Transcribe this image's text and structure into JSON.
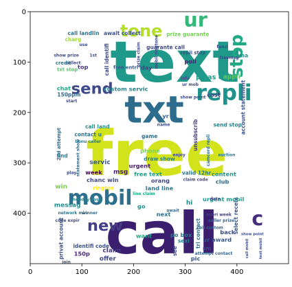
{
  "axes": {
    "x_range": [
      0,
      500
    ],
    "y_range": [
      0,
      500
    ],
    "y_inverted": true,
    "x_ticks": [
      0,
      100,
      200,
      300,
      400
    ],
    "y_ticks": [
      0,
      100,
      200,
      300,
      400
    ],
    "frame_color": "#000000",
    "background": "#ffffff"
  },
  "words": [
    {
      "text": "free",
      "x": 245,
      "y": 282,
      "size": 120,
      "rotate": 0,
      "color": "#d2e21b"
    },
    {
      "text": "call",
      "x": 255,
      "y": 440,
      "size": 112,
      "rotate": 0,
      "color": "#3b1e6e"
    },
    {
      "text": "text",
      "x": 280,
      "y": 100,
      "size": 110,
      "rotate": 0,
      "color": "#1f9a8a"
    },
    {
      "text": "txt",
      "x": 240,
      "y": 195,
      "size": 72,
      "rotate": 0,
      "color": "#2e6c8e"
    },
    {
      "text": "mobil",
      "x": 135,
      "y": 370,
      "size": 40,
      "rotate": 0,
      "color": "#2d708e"
    },
    {
      "text": "repli",
      "x": 375,
      "y": 162,
      "size": 42,
      "rotate": 0,
      "color": "#20928c"
    },
    {
      "text": "tone",
      "x": 215,
      "y": 38,
      "size": 32,
      "rotate": 0,
      "color": "#b5de2b"
    },
    {
      "text": "ur",
      "x": 320,
      "y": 16,
      "size": 38,
      "rotate": 0,
      "color": "#35b779"
    },
    {
      "text": "stop",
      "x": 400,
      "y": 88,
      "size": 34,
      "rotate": -90,
      "color": "#22a884"
    },
    {
      "text": "send",
      "x": 120,
      "y": 153,
      "size": 30,
      "rotate": 0,
      "color": "#3e4989"
    },
    {
      "text": "new",
      "x": 145,
      "y": 425,
      "size": 30,
      "rotate": 0,
      "color": "#433e85"
    },
    {
      "text": "c",
      "x": 440,
      "y": 410,
      "size": 38,
      "rotate": 0,
      "color": "#472d7b"
    },
    {
      "text": "pleas call",
      "x": 355,
      "y": 131,
      "size": 13,
      "rotate": 0,
      "color": "#1e9b8a"
    },
    {
      "text": "call landlin",
      "x": 103,
      "y": 43,
      "size": 10,
      "rotate": 0,
      "color": "#2c728e"
    },
    {
      "text": "await collect",
      "x": 178,
      "y": 43,
      "size": 10,
      "rotate": 0,
      "color": "#3b528b"
    },
    {
      "text": "prize guarante",
      "x": 305,
      "y": 45,
      "size": 10,
      "rotate": 0,
      "color": "#75d054"
    },
    {
      "text": "guarante call",
      "x": 262,
      "y": 71,
      "size": 10,
      "rotate": 0,
      "color": "#3e4989"
    },
    {
      "text": "charg",
      "x": 83,
      "y": 55,
      "size": 10,
      "rotate": 0,
      "color": "#a0da39"
    },
    {
      "text": "credit",
      "x": 64,
      "y": 102,
      "size": 9,
      "rotate": 0,
      "color": "#2a788e"
    },
    {
      "text": "txt stop",
      "x": 72,
      "y": 115,
      "size": 9,
      "rotate": 0,
      "color": "#52c569"
    },
    {
      "text": "chat",
      "x": 65,
      "y": 152,
      "size": 11,
      "rotate": 0,
      "color": "#22a884"
    },
    {
      "text": "150ppm",
      "x": 75,
      "y": 165,
      "size": 10,
      "rotate": 0,
      "color": "#31688e"
    },
    {
      "text": "2nd attempt",
      "x": 56,
      "y": 263,
      "size": 9,
      "rotate": -90,
      "color": "#31688e"
    },
    {
      "text": "call land",
      "x": 130,
      "y": 228,
      "size": 10,
      "rotate": 0,
      "color": "#21918c"
    },
    {
      "text": "contact u",
      "x": 112,
      "y": 244,
      "size": 10,
      "rotate": 0,
      "color": "#2c728e"
    },
    {
      "text": "find",
      "x": 62,
      "y": 286,
      "size": 10,
      "rotate": 0,
      "color": "#2a788e"
    },
    {
      "text": "win",
      "x": 60,
      "y": 348,
      "size": 12,
      "rotate": 0,
      "color": "#7ad151"
    },
    {
      "text": "messag",
      "x": 72,
      "y": 385,
      "size": 12,
      "rotate": 0,
      "color": "#228c8d"
    },
    {
      "text": "privat account",
      "x": 60,
      "y": 450,
      "size": 10,
      "rotate": -90,
      "color": "#3b528b"
    },
    {
      "text": "servic",
      "x": 135,
      "y": 300,
      "size": 12,
      "rotate": 0,
      "color": "#38588c"
    },
    {
      "text": "msg",
      "x": 175,
      "y": 319,
      "size": 12,
      "rotate": 0,
      "color": "#482173"
    },
    {
      "text": "week",
      "x": 123,
      "y": 319,
      "size": 11,
      "rotate": 0,
      "color": "#440154"
    },
    {
      "text": "chanc win",
      "x": 140,
      "y": 334,
      "size": 11,
      "rotate": 0,
      "color": "#3e4989"
    },
    {
      "text": "rington",
      "x": 142,
      "y": 350,
      "size": 10,
      "rotate": 0,
      "color": "#fde725"
    },
    {
      "text": "go",
      "x": 215,
      "y": 386,
      "size": 11,
      "rotate": 0,
      "color": "#21918c"
    },
    {
      "text": "phone",
      "x": 232,
      "y": 276,
      "size": 11,
      "rotate": 0,
      "color": "#7ad151"
    },
    {
      "text": "draw show",
      "x": 250,
      "y": 292,
      "size": 10,
      "rotate": 0,
      "color": "#26828e"
    },
    {
      "text": "urgent",
      "x": 212,
      "y": 306,
      "size": 11,
      "rotate": 0,
      "color": "#481a6c"
    },
    {
      "text": "free text",
      "x": 228,
      "y": 322,
      "size": 11,
      "rotate": 0,
      "color": "#1f9a8a"
    },
    {
      "text": "orang",
      "x": 252,
      "y": 335,
      "size": 11,
      "rotate": 0,
      "color": "#3e4989"
    },
    {
      "text": "land line",
      "x": 250,
      "y": 350,
      "size": 11,
      "rotate": 0,
      "color": "#2a788e"
    },
    {
      "text": "next",
      "x": 258,
      "y": 402,
      "size": 11,
      "rotate": 0,
      "color": "#2c728e"
    },
    {
      "text": "want",
      "x": 220,
      "y": 445,
      "size": 11,
      "rotate": 0,
      "color": "#22a884"
    },
    {
      "text": "identifi code",
      "x": 118,
      "y": 465,
      "size": 10,
      "rotate": 0,
      "color": "#3b528b"
    },
    {
      "text": "150p",
      "x": 100,
      "y": 480,
      "size": 11,
      "rotate": 0,
      "color": "#482878"
    },
    {
      "text": "claim",
      "x": 158,
      "y": 475,
      "size": 12,
      "rotate": 0,
      "color": "#453781"
    },
    {
      "text": "offer",
      "x": 150,
      "y": 491,
      "size": 12,
      "rotate": 0,
      "color": "#3f4788"
    },
    {
      "text": "po box",
      "x": 292,
      "y": 443,
      "size": 11,
      "rotate": 0,
      "color": "#2a788e"
    },
    {
      "text": "ur award",
      "x": 362,
      "y": 452,
      "size": 11,
      "rotate": 0,
      "color": "#38588c"
    },
    {
      "text": "sexi",
      "x": 297,
      "y": 455,
      "size": 10,
      "rotate": 0,
      "color": "#24868e"
    },
    {
      "text": "pic",
      "x": 320,
      "y": 490,
      "size": 11,
      "rotate": 0,
      "color": "#3b528b"
    },
    {
      "text": "back",
      "x": 382,
      "y": 437,
      "size": 11,
      "rotate": 0,
      "color": "#3e4989"
    },
    {
      "text": "urgent mobil",
      "x": 374,
      "y": 372,
      "size": 11,
      "rotate": 0,
      "color": "#1e9b8a"
    },
    {
      "text": "valid 12hr",
      "x": 322,
      "y": 320,
      "size": 10,
      "rotate": 0,
      "color": "#2a788e"
    },
    {
      "text": "content",
      "x": 375,
      "y": 322,
      "size": 11,
      "rotate": 0,
      "color": "#21918c"
    },
    {
      "text": "club",
      "x": 372,
      "y": 337,
      "size": 11,
      "rotate": 0,
      "color": "#31688e"
    },
    {
      "text": "select receiv",
      "x": 398,
      "y": 405,
      "size": 10,
      "rotate": -90,
      "color": "#38588c"
    },
    {
      "text": "tri contact",
      "x": 325,
      "y": 440,
      "size": 10,
      "rotate": -90,
      "color": "#2c728e"
    },
    {
      "text": "unsubscrib",
      "x": 320,
      "y": 245,
      "size": 10,
      "rotate": -90,
      "color": "#443a83"
    },
    {
      "text": "send stop",
      "x": 382,
      "y": 225,
      "size": 10,
      "rotate": 0,
      "color": "#25858e"
    },
    {
      "text": "account statement",
      "x": 412,
      "y": 190,
      "size": 10,
      "rotate": -90,
      "color": "#3b528b"
    },
    {
      "text": "appli",
      "x": 390,
      "y": 130,
      "size": 12,
      "rotate": 0,
      "color": "#5ec962"
    },
    {
      "text": "cost",
      "x": 355,
      "y": 165,
      "size": 11,
      "rotate": 0,
      "color": "#414487"
    },
    {
      "text": "poli",
      "x": 310,
      "y": 99,
      "size": 11,
      "rotate": 0,
      "color": "#481f70"
    },
    {
      "text": "repli stop",
      "x": 315,
      "y": 82,
      "size": 9,
      "rotate": 0,
      "color": "#3b528b"
    },
    {
      "text": "day",
      "x": 225,
      "y": 111,
      "size": 11,
      "rotate": 0,
      "color": "#3f4788"
    },
    {
      "text": "custom servic",
      "x": 185,
      "y": 153,
      "size": 11,
      "rotate": 0,
      "color": "#25838e"
    },
    {
      "text": "top",
      "x": 102,
      "y": 110,
      "size": 11,
      "rotate": 0,
      "color": "#453781"
    },
    {
      "text": "free entri",
      "x": 185,
      "y": 111,
      "size": 9,
      "rotate": 0,
      "color": "#38588c"
    },
    {
      "text": "yr",
      "x": 262,
      "y": 207,
      "size": 11,
      "rotate": 0,
      "color": "#355f8d"
    },
    {
      "text": "game",
      "x": 231,
      "y": 247,
      "size": 10,
      "rotate": 0,
      "color": "#2d708e"
    },
    {
      "text": "xma",
      "x": 410,
      "y": 87,
      "size": 10,
      "rotate": 0,
      "color": "#21918c"
    },
    {
      "text": "call identifi",
      "x": 148,
      "y": 95,
      "size": 10,
      "rotate": -90,
      "color": "#3e4989"
    },
    {
      "text": "call custom",
      "x": 348,
      "y": 429,
      "size": 8,
      "rotate": 0,
      "color": "#31688e"
    },
    {
      "text": "everi week",
      "x": 365,
      "y": 403,
      "size": 8,
      "rotate": 0,
      "color": "#433e85"
    },
    {
      "text": "caller prize",
      "x": 370,
      "y": 415,
      "size": 8,
      "rotate": 0,
      "color": "#33638d"
    },
    {
      "text": "attempt contact",
      "x": 355,
      "y": 480,
      "size": 8,
      "rotate": 0,
      "color": "#33638d"
    },
    {
      "text": "claim code",
      "x": 320,
      "y": 334,
      "size": 8,
      "rotate": 0,
      "color": "#414487"
    },
    {
      "text": "network min",
      "x": 82,
      "y": 400,
      "size": 8,
      "rotate": 0,
      "color": "#2a788e"
    },
    {
      "text": "winner",
      "x": 115,
      "y": 400,
      "size": 8,
      "rotate": 0,
      "color": "#31688e"
    },
    {
      "text": "holiday cash",
      "x": 110,
      "y": 373,
      "size": 8,
      "rotate": 0,
      "color": "#25838e"
    },
    {
      "text": "bonu caller",
      "x": 112,
      "y": 258,
      "size": 8,
      "rotate": 0,
      "color": "#2a788e"
    },
    {
      "text": "statement show",
      "x": 93,
      "y": 290,
      "size": 8,
      "rotate": -90,
      "color": "#31688e"
    },
    {
      "text": "camcord repli",
      "x": 345,
      "y": 275,
      "size": 8,
      "rotate": -90,
      "color": "#2c728e"
    },
    {
      "text": "auction",
      "x": 380,
      "y": 285,
      "size": 8,
      "rotate": 0,
      "color": "#2a788e"
    },
    {
      "text": "line claim",
      "x": 220,
      "y": 362,
      "size": 8,
      "rotate": 0,
      "color": "#22a884"
    },
    {
      "text": "await",
      "x": 276,
      "y": 395,
      "size": 8,
      "rotate": 0,
      "color": "#31688e"
    },
    {
      "text": "info",
      "x": 300,
      "y": 133,
      "size": 8,
      "rotate": 0,
      "color": "#3e4989"
    },
    {
      "text": "ur mob",
      "x": 310,
      "y": 145,
      "size": 8,
      "rotate": 0,
      "color": "#3e4989"
    },
    {
      "text": "show point",
      "x": 315,
      "y": 170,
      "size": 8,
      "rotate": 0,
      "color": "#3e4989"
    },
    {
      "text": "name",
      "x": 258,
      "y": 225,
      "size": 8,
      "rotate": 0,
      "color": "#3e4989"
    },
    {
      "text": "fanci",
      "x": 372,
      "y": 70,
      "size": 8,
      "rotate": 0,
      "color": "#3e4989"
    },
    {
      "text": "freemsg",
      "x": 385,
      "y": 92,
      "size": 8,
      "rotate": 0,
      "color": "#3e4989"
    },
    {
      "text": "1st",
      "x": 122,
      "y": 87,
      "size": 8,
      "rotate": 0,
      "color": "#3e4989"
    },
    {
      "text": "collect",
      "x": 83,
      "y": 102,
      "size": 8,
      "rotate": 0,
      "color": "#3e4989"
    },
    {
      "text": "show prize",
      "x": 70,
      "y": 87,
      "size": 8,
      "rotate": 0,
      "color": "#3e4989"
    },
    {
      "text": "use",
      "x": 103,
      "y": 66,
      "size": 8,
      "rotate": 0,
      "color": "#3e4989"
    },
    {
      "text": "start",
      "x": 80,
      "y": 178,
      "size": 8,
      "rotate": 0,
      "color": "#3e4989"
    },
    {
      "text": "enjoy",
      "x": 288,
      "y": 285,
      "size": 8,
      "rotate": 0,
      "color": "#3e4989"
    },
    {
      "text": "date",
      "x": 358,
      "y": 372,
      "size": 8,
      "rotate": 0,
      "color": "#3e4989"
    },
    {
      "text": "hi",
      "x": 308,
      "y": 380,
      "size": 12,
      "rotate": 0,
      "color": "#21918c"
    },
    {
      "text": "play",
      "x": 80,
      "y": 320,
      "size": 8,
      "rotate": 0,
      "color": "#3e4989"
    },
    {
      "text": "join",
      "x": 70,
      "y": 497,
      "size": 8,
      "rotate": 0,
      "color": "#3e4989"
    },
    {
      "text": "code expir",
      "x": 72,
      "y": 415,
      "size": 8,
      "rotate": 0,
      "color": "#3e4989"
    },
    {
      "text": "prize claim",
      "x": 210,
      "y": 85,
      "size": 8,
      "rotate": -90,
      "color": "#3e4989"
    },
    {
      "text": "mobil ringtone",
      "x": 245,
      "y": 80,
      "size": 8,
      "rotate": -90,
      "color": "#3e4989"
    },
    {
      "text": "show point",
      "x": 430,
      "y": 442,
      "size": 7,
      "rotate": 0,
      "color": "#3e4989"
    },
    {
      "text": "text mobil",
      "x": 447,
      "y": 470,
      "size": 7,
      "rotate": -90,
      "color": "#3e4989"
    },
    {
      "text": "call mobil",
      "x": 420,
      "y": 470,
      "size": 7,
      "rotate": -90,
      "color": "#3e4989"
    },
    {
      "text": "sm",
      "x": 342,
      "y": 470,
      "size": 10,
      "rotate": 0,
      "color": "#3e4989"
    },
    {
      "text": "see",
      "x": 280,
      "y": 475,
      "size": 10,
      "rotate": -90,
      "color": "#3e4989"
    }
  ]
}
